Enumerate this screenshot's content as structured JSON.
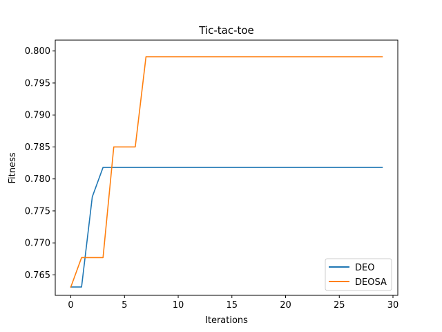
{
  "chart_data": {
    "type": "line",
    "title": "Tic-tac-toe",
    "xlabel": "Iterations",
    "ylabel": "Fitness",
    "xlim": [
      -1.45,
      30.45
    ],
    "ylim": [
      0.7618,
      0.8017
    ],
    "xticks": [
      0,
      5,
      10,
      15,
      20,
      25,
      30
    ],
    "yticks": [
      0.765,
      0.77,
      0.775,
      0.78,
      0.785,
      0.79,
      0.795,
      0.8
    ],
    "legend_position": "bottom-right",
    "series": [
      {
        "name": "DEO",
        "color": "#1f77b4",
        "x": [
          0,
          1,
          2,
          3,
          4,
          5,
          6,
          7,
          8,
          9,
          10,
          11,
          12,
          13,
          14,
          15,
          16,
          17,
          18,
          19,
          20,
          21,
          22,
          23,
          24,
          25,
          26,
          27,
          28,
          29
        ],
        "values": [
          0.7631,
          0.7631,
          0.7772,
          0.7818,
          0.7818,
          0.7818,
          0.7818,
          0.7818,
          0.7818,
          0.7818,
          0.7818,
          0.7818,
          0.7818,
          0.7818,
          0.7818,
          0.7818,
          0.7818,
          0.7818,
          0.7818,
          0.7818,
          0.7818,
          0.7818,
          0.7818,
          0.7818,
          0.7818,
          0.7818,
          0.7818,
          0.7818,
          0.7818,
          0.7818
        ]
      },
      {
        "name": "DEOSA",
        "color": "#ff7f0e",
        "x": [
          0,
          1,
          2,
          3,
          4,
          5,
          6,
          7,
          8,
          9,
          10,
          11,
          12,
          13,
          14,
          15,
          16,
          17,
          18,
          19,
          20,
          21,
          22,
          23,
          24,
          25,
          26,
          27,
          28,
          29
        ],
        "values": [
          0.7631,
          0.7677,
          0.7677,
          0.7677,
          0.785,
          0.785,
          0.785,
          0.7991,
          0.7991,
          0.7991,
          0.7991,
          0.7991,
          0.7991,
          0.7991,
          0.7991,
          0.7991,
          0.7991,
          0.7991,
          0.7991,
          0.7991,
          0.7991,
          0.7991,
          0.7991,
          0.7991,
          0.7991,
          0.7991,
          0.7991,
          0.7991,
          0.7991,
          0.7991
        ]
      }
    ]
  }
}
